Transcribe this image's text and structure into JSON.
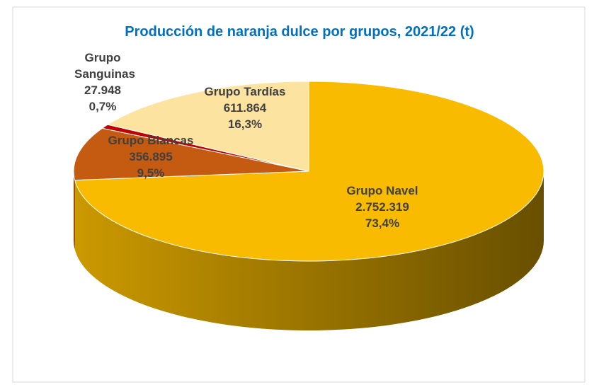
{
  "chart_data": {
    "type": "pie3d",
    "title": "Producción de naranja dulce por grupos, 2021/22 (t)",
    "categories": [
      "Grupo Navel",
      "Grupo Blancas",
      "Grupo Sanguinas",
      "Grupo Tardías"
    ],
    "values": [
      2752319,
      356895,
      27948,
      611864
    ],
    "value_labels": [
      "2.752.319",
      "356.895",
      "27.948",
      "611.864"
    ],
    "percentages": [
      73.4,
      9.5,
      0.7,
      16.3
    ],
    "percentage_labels": [
      "73,4%",
      "9,5%",
      "0,7%",
      "16,3%"
    ],
    "colors": [
      "#f8bb00",
      "#c55a11",
      "#c00000",
      "#fde3a0"
    ]
  }
}
